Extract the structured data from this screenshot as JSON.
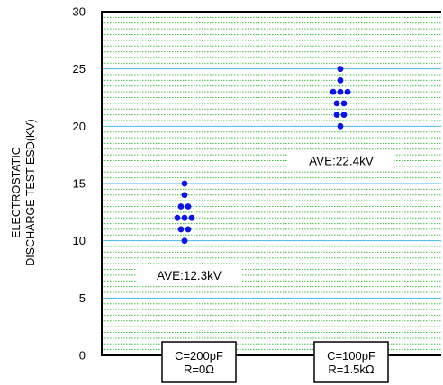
{
  "chart_data": {
    "type": "scatter",
    "ylabel": [
      "ELECTROSTATIC",
      "DISCHARGE TEST ESD(KV)"
    ],
    "ylim": [
      0,
      30
    ],
    "yticks": [
      0,
      5,
      10,
      15,
      20,
      25,
      30
    ],
    "minor_grid_step": 0.5,
    "grid": true,
    "colors": {
      "points": "#0a14e6",
      "major_grid": "#44b8ec",
      "minor_grid": "#3fbf3f",
      "axis": "#000000"
    },
    "categories": [
      {
        "lines": [
          "C=200pF",
          "R=0Ω"
        ]
      },
      {
        "lines": [
          "C=100pF",
          "R=1.5kΩ"
        ]
      }
    ],
    "series": [
      {
        "points": [
          {
            "y": 15,
            "col": 0
          },
          {
            "y": 14,
            "col": 0
          },
          {
            "y": 13,
            "col": -0.5
          },
          {
            "y": 13,
            "col": 0.5
          },
          {
            "y": 12,
            "col": -1
          },
          {
            "y": 12,
            "col": 0
          },
          {
            "y": 12,
            "col": 1
          },
          {
            "y": 11,
            "col": -0.5
          },
          {
            "y": 11,
            "col": 0.5
          },
          {
            "y": 10,
            "col": 0
          }
        ]
      },
      {
        "points": [
          {
            "y": 25,
            "col": 0
          },
          {
            "y": 24,
            "col": 0
          },
          {
            "y": 23,
            "col": -1
          },
          {
            "y": 23,
            "col": 0
          },
          {
            "y": 23,
            "col": 1
          },
          {
            "y": 22,
            "col": -0.5
          },
          {
            "y": 22,
            "col": 0.5
          },
          {
            "y": 21,
            "col": -0.5
          },
          {
            "y": 21,
            "col": 0.5
          },
          {
            "y": 20,
            "col": 0
          }
        ]
      }
    ],
    "annotations": [
      {
        "text": "AVE:12.3kV",
        "y": 7.0,
        "category": 0
      },
      {
        "text": "AVE:22.4kV",
        "y": 17.0,
        "category": 1
      }
    ]
  }
}
